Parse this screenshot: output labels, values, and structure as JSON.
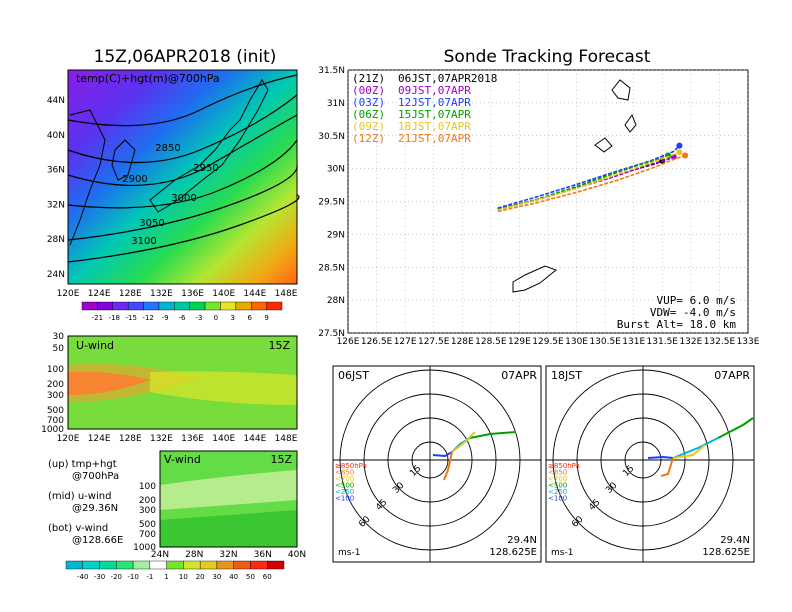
{
  "left_panel": {
    "title": "15Z,06APR2018 (init)",
    "top_map": {
      "label": "temp(C)+hgt(m)@700hPa",
      "lat_ticks": [
        "44N",
        "40N",
        "36N",
        "32N",
        "28N",
        "24N"
      ],
      "lon_ticks": [
        "120E",
        "124E",
        "128E",
        "132E",
        "136E",
        "140E",
        "144E",
        "148E"
      ],
      "contour_labels": [
        "2850",
        "2900",
        "2950",
        "3000",
        "3050",
        "3100"
      ],
      "colorbar_ticks": [
        "-21",
        "-18",
        "-15",
        "-12",
        "-9",
        "-6",
        "-3",
        "0",
        "3",
        "6",
        "9"
      ],
      "colorbar_colors": [
        "#a000c8",
        "#8200dc",
        "#6e28f0",
        "#4646ff",
        "#1e78ff",
        "#00b4d2",
        "#00c8a0",
        "#00d250",
        "#78e628",
        "#e6e61e",
        "#e6aa00",
        "#ff6400",
        "#ff2800"
      ]
    },
    "u_wind": {
      "label": "U-wind",
      "time": "15Z",
      "pressure_ticks": [
        "30",
        "50",
        "100",
        "200",
        "300",
        "500",
        "700",
        "1000"
      ],
      "lon_ticks": [
        "120E",
        "124E",
        "128E",
        "132E",
        "136E",
        "140E",
        "144E",
        "148E"
      ]
    },
    "v_wind": {
      "label": "V-wind",
      "time": "15Z",
      "pressure_ticks": [
        "100",
        "200",
        "300",
        "500",
        "700",
        "1000"
      ],
      "lat_ticks": [
        "24N",
        "28N",
        "32N",
        "36N",
        "40N"
      ]
    },
    "legend": {
      "up1": "(up) tmp+hgt",
      "up2": "@700hPa",
      "mid1": "(mid) u-wind",
      "mid2": "@29.36N",
      "bot1": "(bot) v-wind",
      "bot2": "@128.66E"
    },
    "wind_colorbar_ticks": [
      "-40",
      "-30",
      "-20",
      "-10",
      "-1",
      "1",
      "10",
      "20",
      "30",
      "40",
      "50",
      "60"
    ],
    "wind_colorbar_colors": [
      "#00b4d2",
      "#00d2c8",
      "#00dca0",
      "#28e678",
      "#a0f0a0",
      "#ffffff",
      "#78e628",
      "#d2e628",
      "#e6c81e",
      "#e6961e",
      "#f05a14",
      "#ff2814",
      "#d20000"
    ]
  },
  "tracking": {
    "title": "Sonde Tracking Forecast",
    "lat_ticks": [
      "31.5N",
      "31N",
      "30.5N",
      "30N",
      "29.5N",
      "29N",
      "28.5N",
      "28N",
      "27.5N"
    ],
    "lon_ticks": [
      "126E",
      "126.5E",
      "127E",
      "127.5E",
      "128E",
      "128.5E",
      "129E",
      "129.5E",
      "130E",
      "130.5E",
      "131E",
      "131.5E",
      "132E",
      "132.5E",
      "133E"
    ],
    "legend": [
      {
        "tag": "(21Z)",
        "time": "06JST,07APR2018",
        "color": "#000000"
      },
      {
        "tag": "(00Z)",
        "time": "09JST,07APR",
        "color": "#a000c8"
      },
      {
        "tag": "(03Z)",
        "time": "12JST,07APR",
        "color": "#1e3cff"
      },
      {
        "tag": "(06Z)",
        "time": "15JST,07APR",
        "color": "#00a000"
      },
      {
        "tag": "(09Z)",
        "time": "18JST,07APR",
        "color": "#e6c81e"
      },
      {
        "tag": "(12Z)",
        "time": "21JST,07APR",
        "color": "#f07814"
      }
    ],
    "params": {
      "vup": "VUP=  6.0 m/s",
      "vdw": "VDW= -4.0 m/s",
      "burst": "Burst Alt= 18.0 km"
    }
  },
  "hodographs": [
    {
      "time": "06JST",
      "date": "07APR",
      "lat": "29.4N",
      "lon": "128.625E",
      "unit": "ms-1",
      "ring_labels": [
        "15",
        "30",
        "45",
        "60"
      ]
    },
    {
      "time": "18JST",
      "date": "07APR",
      "lat": "29.4N",
      "lon": "128.625E",
      "unit": "ms-1",
      "ring_labels": [
        "15",
        "30",
        "45",
        "60"
      ]
    }
  ],
  "hodo_levels": [
    {
      "label": "≥850hPa",
      "color": "#ff2800"
    },
    {
      "label": "<850",
      "color": "#f07814"
    },
    {
      "label": "<700",
      "color": "#e6c81e"
    },
    {
      "label": "<500",
      "color": "#00a000"
    },
    {
      "label": "<250",
      "color": "#00b4d2"
    },
    {
      "label": "<100",
      "color": "#1e3cff"
    }
  ],
  "chart_data": [
    {
      "type": "line",
      "title": "Sonde Tracking Forecast",
      "xlabel": "",
      "ylabel": "",
      "xlim": [
        126,
        133
      ],
      "ylim": [
        27.5,
        31.5
      ],
      "series": [
        {
          "name": "(21Z) 06JST,07APR2018",
          "color": "#000000",
          "x": [
            128.62,
            129.2,
            129.8,
            130.4,
            131.0,
            131.4,
            131.5
          ],
          "y": [
            29.38,
            29.5,
            29.65,
            29.82,
            29.98,
            30.08,
            30.12
          ]
        },
        {
          "name": "(00Z) 09JST,07APR",
          "color": "#a000c8",
          "x": [
            128.62,
            129.3,
            129.9,
            130.6,
            131.2,
            131.6,
            131.7
          ],
          "y": [
            29.39,
            29.52,
            29.68,
            29.86,
            30.04,
            30.14,
            30.18
          ]
        },
        {
          "name": "(03Z) 12JST,07APR",
          "color": "#1e3cff",
          "x": [
            128.62,
            129.3,
            130.0,
            130.7,
            131.3,
            131.7,
            131.8
          ],
          "y": [
            29.4,
            29.57,
            29.76,
            29.96,
            30.12,
            30.26,
            30.35
          ]
        },
        {
          "name": "(06Z) 15JST,07APR",
          "color": "#00a000",
          "x": [
            128.62,
            129.3,
            129.9,
            130.5,
            131.1,
            131.5,
            131.6
          ],
          "y": [
            29.38,
            29.53,
            29.7,
            29.88,
            30.06,
            30.16,
            30.2
          ]
        },
        {
          "name": "(09Z) 18JST,07APR",
          "color": "#e6c81e",
          "x": [
            128.62,
            129.3,
            130.0,
            130.6,
            131.2,
            131.6,
            131.8
          ],
          "y": [
            29.37,
            29.52,
            29.7,
            29.88,
            30.06,
            30.18,
            30.25
          ]
        },
        {
          "name": "(12Z) 21JST,07APR",
          "color": "#f07814",
          "x": [
            128.62,
            129.3,
            130.0,
            130.7,
            131.3,
            131.7,
            131.9
          ],
          "y": [
            29.35,
            29.48,
            29.64,
            29.82,
            30.0,
            30.14,
            30.2
          ]
        }
      ]
    }
  ]
}
